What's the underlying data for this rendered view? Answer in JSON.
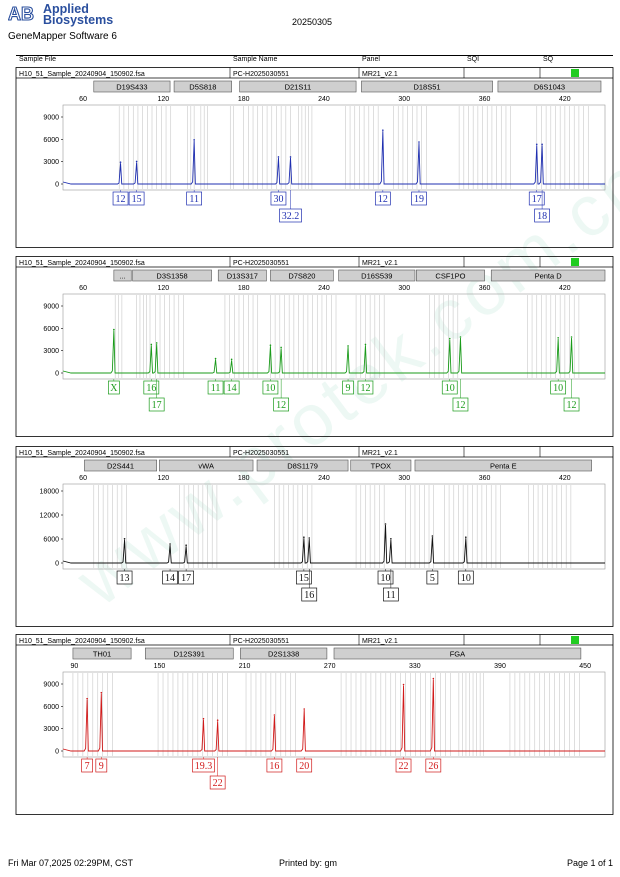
{
  "header": {
    "brand_line1": "Applied",
    "brand_line2": "Biosystems",
    "software": "GeneMapper Software 6",
    "run_date": "20250305"
  },
  "columns": {
    "sample_file": "Sample File",
    "sample_name": "Sample Name",
    "panel": "Panel",
    "sqi": "SQI",
    "sq": "SQ"
  },
  "watermark": "www.protek.com.cn",
  "footer": {
    "date": "Fri Mar 07,2025 02:29PM, CST",
    "printed_by": "Printed by: gm",
    "page": "Page 1 of 1"
  },
  "colors": {
    "blue": "#1f2fb0",
    "green": "#1a9b1a",
    "black": "#111111",
    "red": "#d11a1a",
    "sq_flag": "#22cc22"
  },
  "chart_data": [
    {
      "type": "line",
      "channel": "blue",
      "sample_file": "H10_51_Sample_20240904_150902.fsa",
      "sample_name": "PC-H2025030551",
      "panel": "MR21_v2.1",
      "sq_flag": true,
      "x_ticks": [
        60,
        120,
        180,
        240,
        300,
        360,
        420
      ],
      "y_ticks": [
        0,
        3000,
        6000,
        9000
      ],
      "xlim": [
        45,
        450
      ],
      "ylim": [
        0,
        10500
      ],
      "markers": [
        {
          "name": "D19S433",
          "range": [
            68,
            125
          ]
        },
        {
          "name": "D5S818",
          "range": [
            128,
            171
          ]
        },
        {
          "name": "D21S11",
          "range": [
            177,
            264
          ]
        },
        {
          "name": "D18S51",
          "range": [
            268,
            366
          ]
        },
        {
          "name": "D6S1043",
          "range": [
            370,
            447
          ]
        }
      ],
      "bins": [
        [
          87,
          126
        ],
        [
          138,
          143
        ],
        [
          148,
          155
        ],
        [
          170,
          174
        ],
        [
          180,
          218
        ],
        [
          221,
          231
        ],
        [
          256,
          282
        ],
        [
          292,
          318
        ],
        [
          341,
          380
        ],
        [
          399,
          438
        ]
      ],
      "peaks": [
        {
          "x": 88,
          "height": 2800,
          "allele": "12",
          "row": 0
        },
        {
          "x": 100,
          "height": 2900,
          "allele": "15",
          "row": 0
        },
        {
          "x": 143,
          "height": 5800,
          "allele": "11",
          "row": 0
        },
        {
          "x": 206,
          "height": 3500,
          "allele": "30",
          "row": 0
        },
        {
          "x": 215,
          "height": 3500,
          "allele": "32.2",
          "row": 1
        },
        {
          "x": 284,
          "height": 7100,
          "allele": "12",
          "row": 0
        },
        {
          "x": 311,
          "height": 5500,
          "allele": "19",
          "row": 0
        },
        {
          "x": 399,
          "height": 5200,
          "allele": "17",
          "row": 0
        },
        {
          "x": 403,
          "height": 5200,
          "allele": "18",
          "row": 1
        }
      ]
    },
    {
      "type": "line",
      "channel": "green",
      "sample_file": "H10_51_Sample_20240904_150902.fsa",
      "sample_name": "PC-H2025030551",
      "panel": "MR21_v2.1",
      "sq_flag": true,
      "x_ticks": [
        60,
        120,
        180,
        240,
        300,
        360,
        420
      ],
      "y_ticks": [
        0,
        3000,
        6000,
        9000
      ],
      "xlim": [
        45,
        450
      ],
      "ylim": [
        0,
        10500
      ],
      "markers": [
        {
          "name": "...",
          "range": [
            83,
            96
          ]
        },
        {
          "name": "D3S1358",
          "range": [
            97,
            156
          ]
        },
        {
          "name": "D13S317",
          "range": [
            161,
            197
          ]
        },
        {
          "name": "D7S820",
          "range": [
            200,
            247
          ]
        },
        {
          "name": "D16S539",
          "range": [
            251,
            308
          ]
        },
        {
          "name": "CSF1PO",
          "range": [
            309,
            360
          ]
        },
        {
          "name": "Penta D",
          "range": [
            365,
            450
          ]
        }
      ],
      "bins": [
        [
          84,
          90
        ],
        [
          100,
          112
        ],
        [
          114,
          138
        ],
        [
          166,
          192
        ],
        [
          200,
          249
        ],
        [
          264,
          288
        ],
        [
          319,
          342
        ],
        [
          392,
          432
        ]
      ],
      "peaks": [
        {
          "x": 83,
          "height": 5700,
          "allele": "X",
          "row": 0
        },
        {
          "x": 111,
          "height": 3700,
          "allele": "16",
          "row": 0
        },
        {
          "x": 115,
          "height": 3900,
          "allele": "17",
          "row": 1
        },
        {
          "x": 159,
          "height": 1800,
          "allele": "11",
          "row": 0
        },
        {
          "x": 171,
          "height": 1700,
          "allele": "14",
          "row": 0
        },
        {
          "x": 200,
          "height": 3600,
          "allele": "10",
          "row": 0
        },
        {
          "x": 208,
          "height": 3300,
          "allele": "12",
          "row": 1
        },
        {
          "x": 258,
          "height": 3500,
          "allele": "9",
          "row": 0
        },
        {
          "x": 271,
          "height": 3700,
          "allele": "12",
          "row": 0
        },
        {
          "x": 334,
          "height": 4500,
          "allele": "10",
          "row": 0
        },
        {
          "x": 342,
          "height": 4700,
          "allele": "12",
          "row": 1
        },
        {
          "x": 415,
          "height": 4600,
          "allele": "10",
          "row": 0
        },
        {
          "x": 425,
          "height": 4700,
          "allele": "12",
          "row": 1
        }
      ]
    },
    {
      "type": "line",
      "channel": "black",
      "sample_file": "H10_51_Sample_20240904_150902.fsa",
      "sample_name": "PC-H2025030551",
      "panel": "MR21_v2.1",
      "sq_flag": false,
      "x_ticks": [
        60,
        120,
        180,
        240,
        300,
        360,
        420
      ],
      "y_ticks": [
        0,
        6000,
        12000,
        18000
      ],
      "xlim": [
        45,
        450
      ],
      "ylim": [
        0,
        21000
      ],
      "markers": [
        {
          "name": "D2S441",
          "range": [
            61,
            115
          ]
        },
        {
          "name": "vWA",
          "range": [
            117,
            187
          ]
        },
        {
          "name": "D8S1179",
          "range": [
            190,
            258
          ]
        },
        {
          "name": "TPOX",
          "range": [
            260,
            305
          ]
        },
        {
          "name": "Penta E",
          "range": [
            308,
            440
          ]
        }
      ],
      "bins": [
        [
          68,
          95
        ],
        [
          132,
          162
        ],
        [
          203,
          231
        ],
        [
          264,
          286
        ],
        [
          301,
          323
        ],
        [
          330,
          373
        ],
        [
          393,
          425
        ]
      ],
      "peaks": [
        {
          "x": 91,
          "height": 5800,
          "allele": "13",
          "row": 0
        },
        {
          "x": 125,
          "height": 4500,
          "allele": "14",
          "row": 0
        },
        {
          "x": 137,
          "height": 4200,
          "allele": "17",
          "row": 0
        },
        {
          "x": 225,
          "height": 6200,
          "allele": "15",
          "row": 0
        },
        {
          "x": 229,
          "height": 6000,
          "allele": "16",
          "row": 1
        },
        {
          "x": 286,
          "height": 9500,
          "allele": "10",
          "row": 0
        },
        {
          "x": 290,
          "height": 5800,
          "allele": "11",
          "row": 1
        },
        {
          "x": 321,
          "height": 6500,
          "allele": "5",
          "row": 0
        },
        {
          "x": 346,
          "height": 6200,
          "allele": "10",
          "row": 0
        }
      ]
    },
    {
      "type": "line",
      "channel": "red",
      "sample_file": "H10_51_Sample_20240904_150902.fsa",
      "sample_name": "PC-H2025030551",
      "panel": "MR21_v2.1",
      "sq_flag": true,
      "x_ticks": [
        90,
        150,
        210,
        270,
        330,
        390,
        450
      ],
      "y_ticks": [
        0,
        3000,
        6000,
        9000
      ],
      "xlim": [
        82,
        464
      ],
      "ylim": [
        0,
        10500
      ],
      "markers": [
        {
          "name": "TH01",
          "range": [
            89,
            130
          ]
        },
        {
          "name": "D12S391",
          "range": [
            140,
            202
          ]
        },
        {
          "name": "D2S1338",
          "range": [
            207,
            268
          ]
        },
        {
          "name": "FGA",
          "range": [
            273,
            447
          ]
        }
      ],
      "bins": [
        [
          89,
          118
        ],
        [
          149,
          200
        ],
        [
          211,
          246
        ],
        [
          278,
          356
        ],
        [
          361,
          380
        ],
        [
          397,
          447
        ]
      ],
      "peaks": [
        {
          "x": 99,
          "height": 6900,
          "allele": "7",
          "row": 0
        },
        {
          "x": 109,
          "height": 7700,
          "allele": "9",
          "row": 0
        },
        {
          "x": 181,
          "height": 4200,
          "allele": "19.3",
          "row": 0
        },
        {
          "x": 191,
          "height": 4000,
          "allele": "22",
          "row": 1
        },
        {
          "x": 231,
          "height": 4700,
          "allele": "16",
          "row": 0
        },
        {
          "x": 252,
          "height": 5500,
          "allele": "20",
          "row": 0
        },
        {
          "x": 322,
          "height": 8800,
          "allele": "22",
          "row": 0
        },
        {
          "x": 343,
          "height": 9600,
          "allele": "26",
          "row": 0
        }
      ]
    }
  ]
}
